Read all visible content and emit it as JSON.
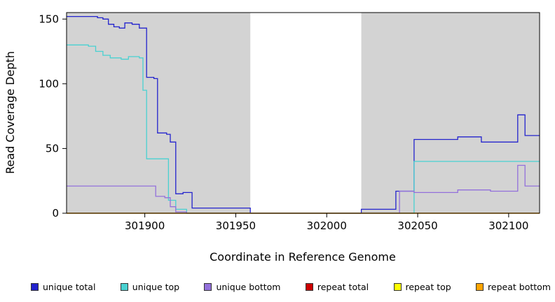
{
  "chart_data": {
    "type": "line",
    "title": "",
    "xlabel": "Coordinate in Reference Genome",
    "ylabel": "Read Coverage Depth",
    "xlim": [
      301857,
      302117
    ],
    "ylim": [
      0,
      155
    ],
    "x_ticks": [
      301900,
      301950,
      302000,
      302050,
      302100
    ],
    "y_ticks": [
      0,
      50,
      100,
      150
    ],
    "plot_bg_color": "#d3d3d3",
    "masked_region": {
      "start": 301958,
      "end": 302019
    },
    "grid": false,
    "legend_position": "bottom",
    "line_style": "step-after",
    "series": [
      {
        "name": "unique total",
        "color": "#2323cd",
        "step_points": [
          [
            301857,
            152
          ],
          [
            301874,
            151
          ],
          [
            301877,
            150
          ],
          [
            301880,
            146
          ],
          [
            301883,
            144
          ],
          [
            301886,
            143
          ],
          [
            301889,
            147
          ],
          [
            301893,
            146
          ],
          [
            301897,
            143
          ],
          [
            301901,
            105
          ],
          [
            301905,
            104
          ],
          [
            301907,
            62
          ],
          [
            301912,
            61
          ],
          [
            301914,
            55
          ],
          [
            301917,
            15
          ],
          [
            301921,
            16
          ],
          [
            301926,
            4
          ],
          [
            301958,
            0
          ],
          [
            302019,
            3
          ],
          [
            302038,
            17
          ],
          [
            302048,
            57
          ],
          [
            302072,
            59
          ],
          [
            302085,
            55
          ],
          [
            302105,
            76
          ],
          [
            302109,
            60
          ]
        ]
      },
      {
        "name": "unique top",
        "color": "#49d1d1",
        "step_points": [
          [
            301857,
            130
          ],
          [
            301869,
            129
          ],
          [
            301873,
            125
          ],
          [
            301877,
            122
          ],
          [
            301881,
            120
          ],
          [
            301887,
            119
          ],
          [
            301891,
            121
          ],
          [
            301897,
            120
          ],
          [
            301899,
            95
          ],
          [
            301901,
            42
          ],
          [
            301913,
            10
          ],
          [
            301917,
            3
          ],
          [
            301923,
            0
          ],
          [
            302048,
            40
          ]
        ]
      },
      {
        "name": "unique bottom",
        "color": "#9370db",
        "step_points": [
          [
            301857,
            21
          ],
          [
            301906,
            13
          ],
          [
            301911,
            12
          ],
          [
            301914,
            5
          ],
          [
            301917,
            1
          ],
          [
            301923,
            0
          ],
          [
            302040,
            17
          ],
          [
            302048,
            16
          ],
          [
            302072,
            18
          ],
          [
            302090,
            17
          ],
          [
            302105,
            37
          ],
          [
            302109,
            21
          ]
        ]
      },
      {
        "name": "repeat total",
        "color": "#cc0000",
        "step_points": [
          [
            301857,
            0
          ]
        ]
      },
      {
        "name": "repeat top",
        "color": "#ffff00",
        "step_points": [
          [
            301857,
            0
          ]
        ]
      },
      {
        "name": "repeat bottom",
        "color": "#ffa500",
        "step_points": [
          [
            301857,
            0
          ]
        ]
      }
    ]
  }
}
